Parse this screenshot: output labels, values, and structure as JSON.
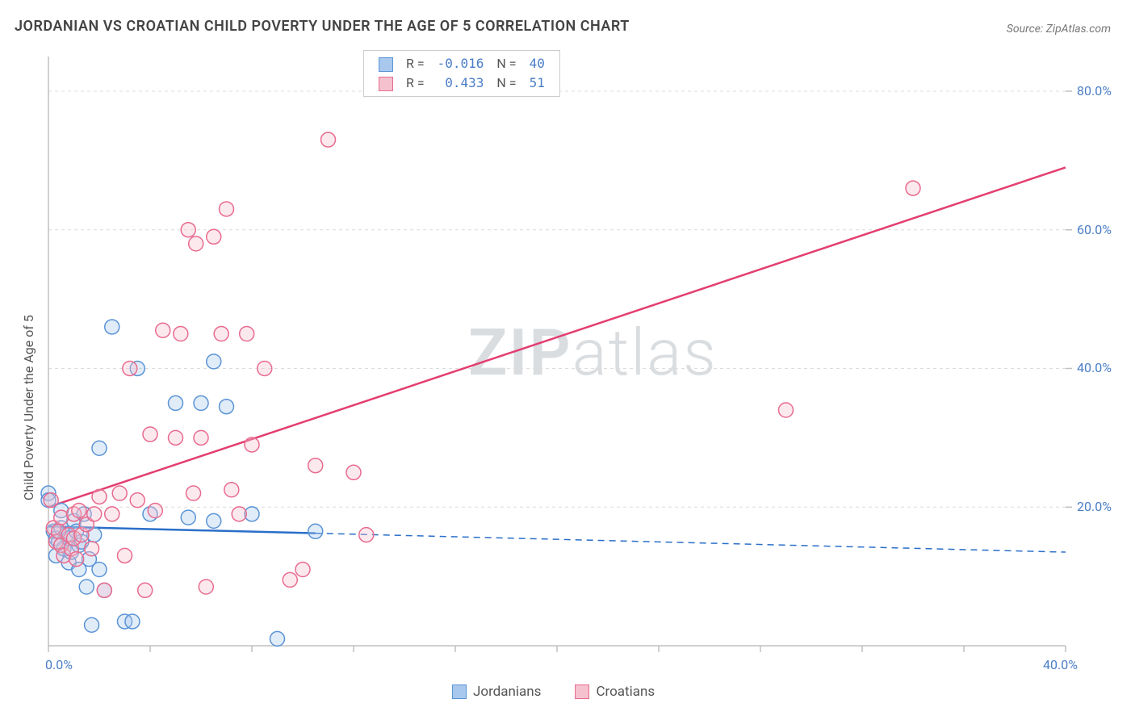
{
  "title": "JORDANIAN VS CROATIAN CHILD POVERTY UNDER THE AGE OF 5 CORRELATION CHART",
  "source": "Source: ZipAtlas.com",
  "ylabel": "Child Poverty Under the Age of 5",
  "watermark_a": "ZIP",
  "watermark_b": "atlas",
  "chart": {
    "type": "scatter",
    "background_color": "#ffffff",
    "grid_color": "#dcdcdc",
    "axis_color": "#c0c0c0",
    "tick_color": "#c0c0c0",
    "tick_label_color": "#4a7ec7",
    "xlim": [
      0,
      40
    ],
    "ylim": [
      0,
      85
    ],
    "xticks": [
      0,
      4,
      8,
      12,
      16,
      20,
      24,
      28,
      32,
      36,
      40
    ],
    "yticks": [
      20,
      40,
      60,
      80
    ],
    "x_tick_labels": {
      "0": "0.0%",
      "40": "40.0%"
    },
    "y_tick_labels": {
      "20": "20.0%",
      "40": "40.0%",
      "60": "60.0%",
      "80": "80.0%"
    },
    "marker_radius": 9,
    "marker_stroke_width": 1.5,
    "marker_fill_opacity": 0.35,
    "series": {
      "jordanians": {
        "label": "Jordanians",
        "color_fill": "#a8c8ed",
        "color_stroke": "#5a94d6",
        "trend_color": "#2a6fc9",
        "trend_width": 2.5,
        "r": "-0.016",
        "n": "40",
        "trend": {
          "x1": 0,
          "y1": 17.2,
          "x2": 40,
          "y2": 13.5,
          "solid_until_x": 10.5
        },
        "points": [
          [
            0.0,
            22.0
          ],
          [
            0.0,
            21.0
          ],
          [
            0.2,
            16.5
          ],
          [
            0.3,
            15.5
          ],
          [
            0.3,
            13.0
          ],
          [
            0.4,
            15.0
          ],
          [
            0.5,
            19.5
          ],
          [
            0.5,
            17.0
          ],
          [
            0.6,
            14.0
          ],
          [
            0.7,
            16.0
          ],
          [
            0.8,
            15.5
          ],
          [
            0.8,
            12.0
          ],
          [
            0.9,
            13.5
          ],
          [
            1.0,
            18.0
          ],
          [
            1.1,
            16.5
          ],
          [
            1.2,
            14.5
          ],
          [
            1.2,
            11.0
          ],
          [
            1.3,
            15.0
          ],
          [
            1.4,
            19.0
          ],
          [
            1.5,
            8.5
          ],
          [
            1.6,
            12.5
          ],
          [
            1.7,
            3.0
          ],
          [
            1.8,
            16.0
          ],
          [
            2.0,
            28.5
          ],
          [
            2.0,
            11.0
          ],
          [
            2.2,
            8.0
          ],
          [
            2.5,
            46.0
          ],
          [
            3.0,
            3.5
          ],
          [
            3.3,
            3.5
          ],
          [
            3.5,
            40.0
          ],
          [
            4.0,
            19.0
          ],
          [
            5.0,
            35.0
          ],
          [
            5.5,
            18.5
          ],
          [
            6.0,
            35.0
          ],
          [
            6.5,
            18.0
          ],
          [
            6.5,
            41.0
          ],
          [
            7.0,
            34.5
          ],
          [
            8.0,
            19.0
          ],
          [
            9.0,
            1.0
          ],
          [
            10.5,
            16.5
          ]
        ]
      },
      "croatians": {
        "label": "Croatians",
        "color_fill": "#f5c1cf",
        "color_stroke": "#e86b8f",
        "trend_color": "#e33e70",
        "trend_width": 2.5,
        "r": "0.433",
        "n": "51",
        "trend": {
          "x1": 0,
          "y1": 20.0,
          "x2": 40,
          "y2": 69.0,
          "solid_until_x": 40
        },
        "points": [
          [
            0.1,
            21.0
          ],
          [
            0.2,
            17.0
          ],
          [
            0.3,
            15.0
          ],
          [
            0.4,
            16.5
          ],
          [
            0.5,
            14.5
          ],
          [
            0.5,
            18.5
          ],
          [
            0.6,
            13.0
          ],
          [
            0.8,
            16.0
          ],
          [
            0.9,
            14.0
          ],
          [
            1.0,
            19.0
          ],
          [
            1.0,
            15.5
          ],
          [
            1.1,
            12.5
          ],
          [
            1.2,
            19.5
          ],
          [
            1.3,
            16.0
          ],
          [
            1.5,
            17.5
          ],
          [
            1.7,
            14.0
          ],
          [
            1.8,
            19.0
          ],
          [
            2.0,
            21.5
          ],
          [
            2.2,
            8.0
          ],
          [
            2.5,
            19.0
          ],
          [
            2.8,
            22.0
          ],
          [
            3.0,
            13.0
          ],
          [
            3.2,
            40.0
          ],
          [
            3.5,
            21.0
          ],
          [
            3.8,
            8.0
          ],
          [
            4.0,
            30.5
          ],
          [
            4.2,
            19.5
          ],
          [
            4.5,
            45.5
          ],
          [
            5.0,
            30.0
          ],
          [
            5.2,
            45.0
          ],
          [
            5.5,
            60.0
          ],
          [
            5.7,
            22.0
          ],
          [
            5.8,
            58.0
          ],
          [
            6.0,
            30.0
          ],
          [
            6.2,
            8.5
          ],
          [
            6.5,
            59.0
          ],
          [
            6.8,
            45.0
          ],
          [
            7.0,
            63.0
          ],
          [
            7.2,
            22.5
          ],
          [
            7.5,
            19.0
          ],
          [
            7.8,
            45.0
          ],
          [
            8.0,
            29.0
          ],
          [
            8.5,
            40.0
          ],
          [
            9.5,
            9.5
          ],
          [
            10.0,
            11.0
          ],
          [
            10.5,
            26.0
          ],
          [
            11.0,
            73.0
          ],
          [
            12.0,
            25.0
          ],
          [
            12.5,
            16.0
          ],
          [
            29.0,
            34.0
          ],
          [
            34.0,
            66.0
          ]
        ]
      }
    }
  },
  "legend_top": {
    "r_label": "R =",
    "n_label": "N ="
  },
  "legend_bottom": {
    "jordanians": "Jordanians",
    "croatians": "Croatians"
  }
}
